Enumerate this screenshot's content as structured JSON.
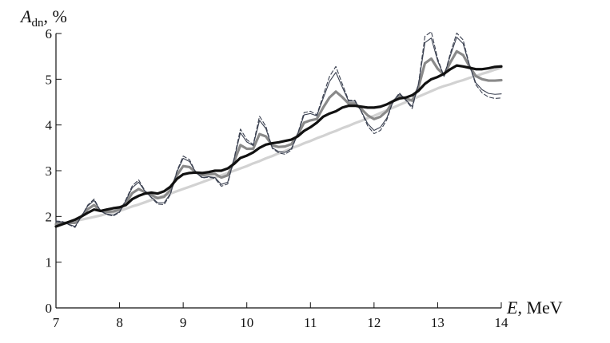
{
  "chart_data": {
    "type": "line",
    "ylabel_parts": [
      "A",
      "dn",
      ", %"
    ],
    "xlabel_parts": [
      "E",
      ", MeV"
    ],
    "xlim": [
      7,
      14
    ],
    "xticks": [
      7,
      8,
      9,
      10,
      11,
      12,
      13,
      14
    ],
    "ylim": [
      0,
      6
    ],
    "yticks": [
      0,
      1,
      2,
      3,
      4,
      5,
      6
    ],
    "grid": false,
    "x": [
      7.0,
      7.1,
      7.2,
      7.3,
      7.4,
      7.5,
      7.6,
      7.7,
      7.8,
      7.9,
      8.0,
      8.1,
      8.2,
      8.3,
      8.4,
      8.5,
      8.6,
      8.7,
      8.8,
      8.9,
      9.0,
      9.1,
      9.2,
      9.3,
      9.4,
      9.5,
      9.6,
      9.7,
      9.8,
      9.9,
      10.0,
      10.1,
      10.2,
      10.3,
      10.4,
      10.5,
      10.6,
      10.7,
      10.8,
      10.9,
      11.0,
      11.1,
      11.2,
      11.3,
      11.4,
      11.5,
      11.6,
      11.7,
      11.8,
      11.9,
      12.0,
      12.1,
      12.2,
      12.3,
      12.4,
      12.5,
      12.6,
      12.7,
      12.8,
      12.9,
      13.0,
      13.1,
      13.2,
      13.3,
      13.4,
      13.5,
      13.6,
      13.7,
      13.8,
      13.9,
      14.0
    ],
    "series": [
      {
        "color": "#d2d2d2",
        "weight": "thick",
        "style": "solid",
        "values": [
          1.8,
          1.83,
          1.86,
          1.9,
          1.93,
          1.96,
          1.99,
          2.02,
          2.06,
          2.09,
          2.12,
          2.17,
          2.22,
          2.26,
          2.31,
          2.36,
          2.41,
          2.46,
          2.5,
          2.55,
          2.6,
          2.65,
          2.7,
          2.75,
          2.8,
          2.85,
          2.9,
          2.95,
          3.0,
          3.05,
          3.1,
          3.16,
          3.21,
          3.27,
          3.32,
          3.38,
          3.43,
          3.49,
          3.54,
          3.6,
          3.65,
          3.71,
          3.76,
          3.82,
          3.87,
          3.93,
          3.98,
          4.04,
          4.09,
          4.15,
          4.2,
          4.26,
          4.32,
          4.38,
          4.44,
          4.5,
          4.56,
          4.62,
          4.68,
          4.74,
          4.8,
          4.85,
          4.89,
          4.94,
          4.98,
          5.03,
          5.07,
          5.12,
          5.16,
          5.21,
          5.25
        ]
      },
      {
        "color": "#8a8a8a",
        "weight": "thick",
        "style": "solid",
        "values": [
          1.83,
          1.86,
          1.86,
          1.86,
          2.0,
          2.16,
          2.25,
          2.12,
          2.1,
          2.11,
          2.15,
          2.3,
          2.51,
          2.6,
          2.53,
          2.47,
          2.4,
          2.43,
          2.58,
          2.9,
          3.1,
          3.08,
          2.96,
          2.9,
          2.92,
          2.93,
          2.85,
          2.9,
          3.2,
          3.56,
          3.48,
          3.48,
          3.8,
          3.75,
          3.55,
          3.52,
          3.53,
          3.58,
          3.78,
          4.05,
          4.1,
          4.13,
          4.38,
          4.6,
          4.73,
          4.61,
          4.47,
          4.47,
          4.35,
          4.21,
          4.13,
          4.18,
          4.3,
          4.52,
          4.63,
          4.58,
          4.53,
          4.83,
          5.35,
          5.45,
          5.23,
          5.1,
          5.37,
          5.61,
          5.53,
          5.28,
          5.07,
          5.0,
          4.97,
          4.97,
          4.98
        ]
      },
      {
        "color": "#3a4050",
        "weight": "thin",
        "style": "dashed",
        "values": [
          1.9,
          1.89,
          1.82,
          1.76,
          2.0,
          2.25,
          2.38,
          2.12,
          2.04,
          2.01,
          2.09,
          2.37,
          2.67,
          2.8,
          2.56,
          2.41,
          2.27,
          2.26,
          2.48,
          2.99,
          3.32,
          3.24,
          2.96,
          2.84,
          2.86,
          2.83,
          2.66,
          2.71,
          3.27,
          3.91,
          3.68,
          3.57,
          4.19,
          3.97,
          3.49,
          3.39,
          3.36,
          3.45,
          3.81,
          4.27,
          4.3,
          4.22,
          4.64,
          5.06,
          5.28,
          4.9,
          4.54,
          4.54,
          4.29,
          3.98,
          3.81,
          3.88,
          4.11,
          4.52,
          4.7,
          4.54,
          4.36,
          4.92,
          5.94,
          6.04,
          5.45,
          5.06,
          5.57,
          6.01,
          5.86,
          5.31,
          4.88,
          4.7,
          4.61,
          4.58,
          4.59
        ]
      },
      {
        "color": "#3a4050",
        "weight": "thin",
        "style": "solid",
        "values": [
          1.88,
          1.88,
          1.83,
          1.78,
          2.0,
          2.23,
          2.35,
          2.12,
          2.05,
          2.03,
          2.1,
          2.35,
          2.63,
          2.75,
          2.55,
          2.42,
          2.3,
          2.3,
          2.5,
          2.97,
          3.27,
          3.2,
          2.96,
          2.85,
          2.87,
          2.85,
          2.7,
          2.75,
          3.25,
          3.83,
          3.63,
          3.55,
          4.1,
          3.92,
          3.5,
          3.42,
          3.4,
          3.48,
          3.8,
          4.22,
          4.25,
          4.2,
          4.58,
          4.95,
          5.15,
          4.83,
          4.52,
          4.52,
          4.3,
          4.03,
          3.88,
          3.95,
          4.15,
          4.52,
          4.68,
          4.55,
          4.4,
          4.9,
          5.8,
          5.9,
          5.4,
          5.07,
          5.52,
          5.92,
          5.78,
          5.3,
          4.92,
          4.77,
          4.69,
          4.67,
          4.68
        ]
      },
      {
        "color": "#111111",
        "weight": "thick",
        "style": "solid",
        "values": [
          1.78,
          1.83,
          1.88,
          1.93,
          2.0,
          2.08,
          2.15,
          2.12,
          2.15,
          2.18,
          2.2,
          2.25,
          2.38,
          2.45,
          2.5,
          2.52,
          2.5,
          2.55,
          2.65,
          2.82,
          2.92,
          2.95,
          2.96,
          2.95,
          2.97,
          3.0,
          3.0,
          3.05,
          3.15,
          3.28,
          3.33,
          3.4,
          3.5,
          3.57,
          3.6,
          3.62,
          3.65,
          3.68,
          3.75,
          3.87,
          3.95,
          4.05,
          4.18,
          4.25,
          4.3,
          4.38,
          4.42,
          4.42,
          4.4,
          4.38,
          4.38,
          4.4,
          4.45,
          4.52,
          4.58,
          4.6,
          4.65,
          4.75,
          4.9,
          5.0,
          5.05,
          5.12,
          5.22,
          5.3,
          5.28,
          5.25,
          5.22,
          5.22,
          5.24,
          5.27,
          5.28
        ]
      }
    ]
  }
}
